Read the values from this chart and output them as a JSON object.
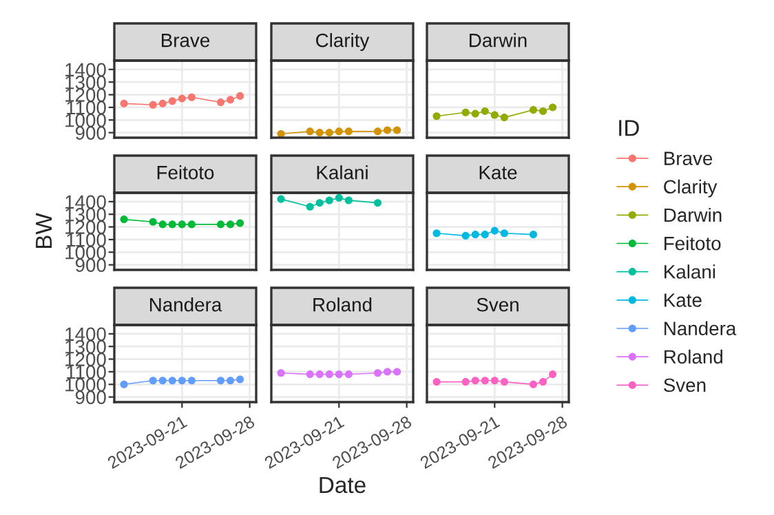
{
  "chart_data": [
    {
      "type": "line",
      "title": "Brave",
      "legend_title": "ID",
      "legend": "right",
      "marker": "circle",
      "grid": true,
      "tick_labels": "y",
      "xlim": [
        "2023-09-14",
        "2023-09-28T16:00"
      ],
      "xticks": [
        {
          "value": "2023-09-21",
          "label": null
        },
        {
          "value": "2023-09-28",
          "label": null
        }
      ],
      "ylim": [
        860,
        1470
      ],
      "yticks": [
        900,
        1000,
        1100,
        1200,
        1300,
        1400
      ],
      "series": [
        {
          "name": "Brave",
          "color": "#F8766D",
          "x": [
            "2023-09-15",
            "2023-09-18",
            "2023-09-19",
            "2023-09-20",
            "2023-09-21",
            "2023-09-22",
            "2023-09-25",
            "2023-09-26",
            "2023-09-27"
          ],
          "values": [
            1130,
            1120,
            1130,
            1150,
            1170,
            1180,
            1140,
            1160,
            1190
          ]
        }
      ]
    },
    {
      "type": "line",
      "title": "Clarity",
      "legend": "right",
      "marker": "circle",
      "grid": true,
      "tick_labels": false,
      "xlim": [
        "2023-09-14",
        "2023-09-28T16:00"
      ],
      "xticks": [
        {
          "value": "2023-09-21",
          "label": null
        },
        {
          "value": "2023-09-28",
          "label": null
        }
      ],
      "ylim": [
        860,
        1470
      ],
      "yticks": [
        {
          "value": 900,
          "label": null
        },
        {
          "value": 1000,
          "label": null
        },
        {
          "value": 1100,
          "label": null
        },
        {
          "value": 1200,
          "label": null
        },
        {
          "value": 1300,
          "label": null
        },
        {
          "value": 1400,
          "label": null
        }
      ],
      "series": [
        {
          "name": "Clarity",
          "color": "#D39200",
          "x": [
            "2023-09-15",
            "2023-09-18",
            "2023-09-19",
            "2023-09-20",
            "2023-09-21",
            "2023-09-22",
            "2023-09-25",
            "2023-09-26",
            "2023-09-27"
          ],
          "values": [
            890,
            910,
            900,
            900,
            910,
            910,
            910,
            920,
            920
          ]
        }
      ]
    },
    {
      "type": "line",
      "title": "Darwin",
      "legend": "right",
      "marker": "circle",
      "grid": true,
      "tick_labels": false,
      "xlim": [
        "2023-09-14",
        "2023-09-28T16:00"
      ],
      "xticks": [
        {
          "value": "2023-09-21",
          "label": null
        },
        {
          "value": "2023-09-28",
          "label": null
        }
      ],
      "ylim": [
        860,
        1470
      ],
      "yticks": [
        {
          "value": 900,
          "label": null
        },
        {
          "value": 1000,
          "label": null
        },
        {
          "value": 1100,
          "label": null
        },
        {
          "value": 1200,
          "label": null
        },
        {
          "value": 1300,
          "label": null
        },
        {
          "value": 1400,
          "label": null
        }
      ],
      "series": [
        {
          "name": "Darwin",
          "color": "#93AA00",
          "x": [
            "2023-09-15",
            "2023-09-18",
            "2023-09-19",
            "2023-09-20",
            "2023-09-21",
            "2023-09-22",
            "2023-09-25",
            "2023-09-26",
            "2023-09-27"
          ],
          "values": [
            1030,
            1060,
            1050,
            1070,
            1040,
            1020,
            1080,
            1070,
            1100
          ]
        }
      ]
    },
    {
      "type": "line",
      "title": "Feitoto",
      "ylabel": "BW",
      "legend": "right",
      "marker": "circle",
      "grid": true,
      "tick_labels": "y",
      "xlim": [
        "2023-09-14",
        "2023-09-28T16:00"
      ],
      "xticks": [
        {
          "value": "2023-09-21",
          "label": null
        },
        {
          "value": "2023-09-28",
          "label": null
        }
      ],
      "ylim": [
        860,
        1470
      ],
      "yticks": [
        900,
        1000,
        1100,
        1200,
        1300,
        1400
      ],
      "series": [
        {
          "name": "Feitoto",
          "color": "#00BA38",
          "x": [
            "2023-09-15",
            "2023-09-18",
            "2023-09-19",
            "2023-09-20",
            "2023-09-21",
            "2023-09-22",
            "2023-09-25",
            "2023-09-26",
            "2023-09-27"
          ],
          "values": [
            1260,
            1240,
            1220,
            1220,
            1220,
            1220,
            1220,
            1220,
            1230
          ]
        }
      ]
    },
    {
      "type": "line",
      "title": "Kalani",
      "legend": "right",
      "marker": "circle",
      "grid": true,
      "tick_labels": false,
      "xlim": [
        "2023-09-14",
        "2023-09-28T16:00"
      ],
      "xticks": [
        {
          "value": "2023-09-21",
          "label": null
        },
        {
          "value": "2023-09-28",
          "label": null
        }
      ],
      "ylim": [
        860,
        1470
      ],
      "yticks": [
        {
          "value": 900,
          "label": null
        },
        {
          "value": 1000,
          "label": null
        },
        {
          "value": 1100,
          "label": null
        },
        {
          "value": 1200,
          "label": null
        },
        {
          "value": 1300,
          "label": null
        },
        {
          "value": 1400,
          "label": null
        }
      ],
      "series": [
        {
          "name": "Kalani",
          "color": "#00C19F",
          "x": [
            "2023-09-15",
            "2023-09-18",
            "2023-09-19",
            "2023-09-20",
            "2023-09-21",
            "2023-09-22",
            "2023-09-25"
          ],
          "values": [
            1420,
            1360,
            1390,
            1410,
            1430,
            1410,
            1390
          ]
        }
      ]
    },
    {
      "type": "line",
      "title": "Kate",
      "legend": "right",
      "marker": "circle",
      "grid": true,
      "tick_labels": false,
      "xlim": [
        "2023-09-14",
        "2023-09-28T16:00"
      ],
      "xticks": [
        {
          "value": "2023-09-21",
          "label": null
        },
        {
          "value": "2023-09-28",
          "label": null
        }
      ],
      "ylim": [
        860,
        1470
      ],
      "yticks": [
        {
          "value": 900,
          "label": null
        },
        {
          "value": 1000,
          "label": null
        },
        {
          "value": 1100,
          "label": null
        },
        {
          "value": 1200,
          "label": null
        },
        {
          "value": 1300,
          "label": null
        },
        {
          "value": 1400,
          "label": null
        }
      ],
      "series": [
        {
          "name": "Kate",
          "color": "#00B9E3",
          "x": [
            "2023-09-15",
            "2023-09-18",
            "2023-09-19",
            "2023-09-20",
            "2023-09-21",
            "2023-09-22",
            "2023-09-25"
          ],
          "values": [
            1150,
            1130,
            1140,
            1140,
            1170,
            1150,
            1140
          ]
        }
      ]
    },
    {
      "type": "line",
      "title": "Nandera",
      "legend": "right",
      "marker": "circle",
      "grid": true,
      "xlim": [
        "2023-09-14",
        "2023-09-28T16:00"
      ],
      "xticks": [
        {
          "value": "2023-09-21",
          "label": "2023-09-21"
        },
        {
          "value": "2023-09-28",
          "label": "2023-09-28"
        }
      ],
      "ylim": [
        860,
        1470
      ],
      "yticks": [
        900,
        1000,
        1100,
        1200,
        1300,
        1400
      ],
      "series": [
        {
          "name": "Nandera",
          "color": "#619CFF",
          "x": [
            "2023-09-15",
            "2023-09-18",
            "2023-09-19",
            "2023-09-20",
            "2023-09-21",
            "2023-09-22",
            "2023-09-25",
            "2023-09-26",
            "2023-09-27"
          ],
          "values": [
            1000,
            1030,
            1030,
            1030,
            1030,
            1030,
            1030,
            1030,
            1040
          ]
        }
      ]
    },
    {
      "type": "line",
      "title": "Roland",
      "xlabel": "Date",
      "legend": "right",
      "marker": "circle",
      "grid": true,
      "tick_labels": "x",
      "xlim": [
        "2023-09-14",
        "2023-09-28T16:00"
      ],
      "xticks": [
        {
          "value": "2023-09-21",
          "label": "2023-09-21"
        },
        {
          "value": "2023-09-28",
          "label": "2023-09-28"
        }
      ],
      "ylim": [
        860,
        1470
      ],
      "yticks": [
        {
          "value": 900,
          "label": null
        },
        {
          "value": 1000,
          "label": null
        },
        {
          "value": 1100,
          "label": null
        },
        {
          "value": 1200,
          "label": null
        },
        {
          "value": 1300,
          "label": null
        },
        {
          "value": 1400,
          "label": null
        }
      ],
      "series": [
        {
          "name": "Roland",
          "color": "#DB72FB",
          "x": [
            "2023-09-15",
            "2023-09-18",
            "2023-09-19",
            "2023-09-20",
            "2023-09-21",
            "2023-09-22",
            "2023-09-25",
            "2023-09-26",
            "2023-09-27"
          ],
          "values": [
            1090,
            1080,
            1080,
            1080,
            1080,
            1080,
            1090,
            1100,
            1100
          ]
        }
      ]
    },
    {
      "type": "line",
      "title": "Sven",
      "legend": "right",
      "marker": "circle",
      "grid": true,
      "tick_labels": "x",
      "xlim": [
        "2023-09-14",
        "2023-09-28T16:00"
      ],
      "xticks": [
        {
          "value": "2023-09-21",
          "label": "2023-09-21"
        },
        {
          "value": "2023-09-28",
          "label": "2023-09-28"
        }
      ],
      "ylim": [
        860,
        1470
      ],
      "yticks": [
        {
          "value": 900,
          "label": null
        },
        {
          "value": 1000,
          "label": null
        },
        {
          "value": 1100,
          "label": null
        },
        {
          "value": 1200,
          "label": null
        },
        {
          "value": 1300,
          "label": null
        },
        {
          "value": 1400,
          "label": null
        }
      ],
      "series": [
        {
          "name": "Sven",
          "color": "#FF61C3",
          "x": [
            "2023-09-15",
            "2023-09-18",
            "2023-09-19",
            "2023-09-20",
            "2023-09-21",
            "2023-09-22",
            "2023-09-25",
            "2023-09-26",
            "2023-09-27"
          ],
          "values": [
            1020,
            1020,
            1030,
            1030,
            1030,
            1020,
            1000,
            1020,
            1080
          ]
        }
      ]
    }
  ]
}
